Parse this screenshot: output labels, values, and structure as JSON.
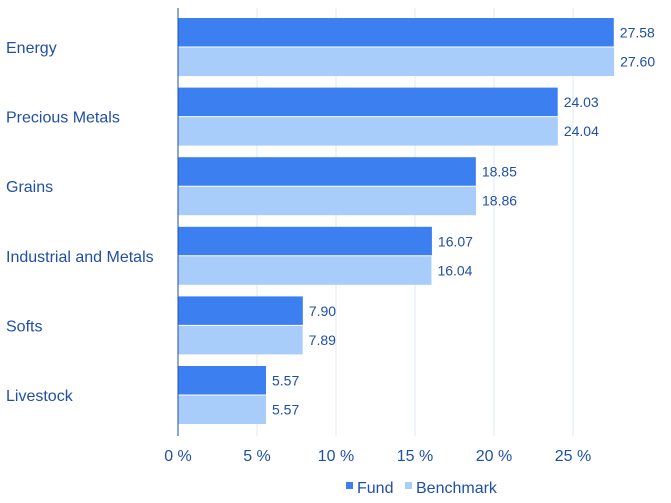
{
  "chart_data": {
    "type": "bar",
    "orientation": "horizontal",
    "categories": [
      "Energy",
      "Precious Metals",
      "Grains",
      "Industrial and Metals",
      "Softs",
      "Livestock"
    ],
    "series": [
      {
        "name": "Fund",
        "values": [
          27.58,
          24.03,
          18.85,
          16.07,
          7.9,
          5.57
        ],
        "color": "#3b7ff0"
      },
      {
        "name": "Benchmark",
        "values": [
          27.6,
          24.04,
          18.86,
          16.04,
          7.89,
          5.57
        ],
        "color": "#a8cdfb"
      }
    ],
    "value_labels": [
      [
        "27.58",
        "24.03",
        "18.85",
        "16.07",
        "7.90",
        "5.57"
      ],
      [
        "27.60",
        "24.04",
        "18.86",
        "16.04",
        "7.89",
        "5.57"
      ]
    ],
    "x_ticks": [
      "0 %",
      "5 %",
      "10 %",
      "15 %",
      "20 %",
      "25 %"
    ],
    "x_tick_values": [
      0,
      5,
      10,
      15,
      20,
      25
    ],
    "xlim": [
      0,
      28.1
    ],
    "title": "",
    "xlabel": "",
    "ylabel": "",
    "grid": "vertical",
    "legend_position": "bottom-right"
  }
}
